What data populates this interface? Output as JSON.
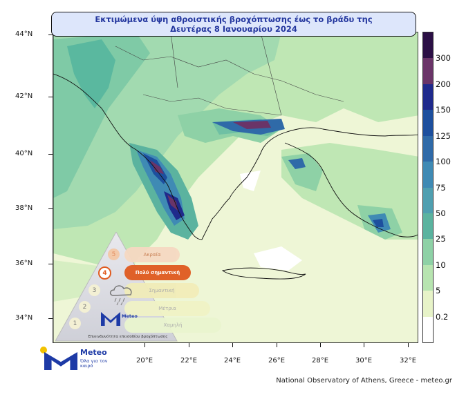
{
  "map": {
    "title_line1": "Εκτιμώμενα ύψη αθροιστικής βροχόπτωσης έως το βράδυ της",
    "title_line2": "Δευτέρας 8 Ιανουαρίου 2024",
    "lat_labels": [
      "44°N",
      "42°N",
      "40°N",
      "38°N",
      "36°N",
      "34°N"
    ],
    "lon_labels": [
      "20°E",
      "22°E",
      "24°E",
      "26°E",
      "28°E",
      "30°E",
      "32°E"
    ],
    "credit": "National Observatory of Athens, Greece - meteo.gr"
  },
  "colorbar": {
    "labels": [
      "300",
      "200",
      "150",
      "125",
      "100",
      "75",
      "50",
      "25",
      "10",
      "5",
      "0.2"
    ],
    "colors": [
      "#2b0f45",
      "#6a3468",
      "#1f2a8c",
      "#1d4f9e",
      "#2f6aa8",
      "#3f8ab4",
      "#4f9fb0",
      "#5bb39f",
      "#8ed1a6",
      "#b7e4b0",
      "#e7f3c8",
      "#ffffff"
    ]
  },
  "legend": {
    "levels": [
      {
        "num": "5",
        "label": "Ακραία"
      },
      {
        "num": "4",
        "label": "Πολύ σημαντική"
      },
      {
        "num": "3",
        "label": "Σημαντική"
      },
      {
        "num": "2",
        "label": "Μέτρια"
      },
      {
        "num": "1",
        "label": "Χαμηλή"
      }
    ],
    "caption": "Επικινδυνότητα επεισοδίου βροχόπτωσης",
    "brand": "Meteo"
  },
  "logo": {
    "brand": "Meteo",
    "tagline": "Όλα για τον καιρό"
  }
}
